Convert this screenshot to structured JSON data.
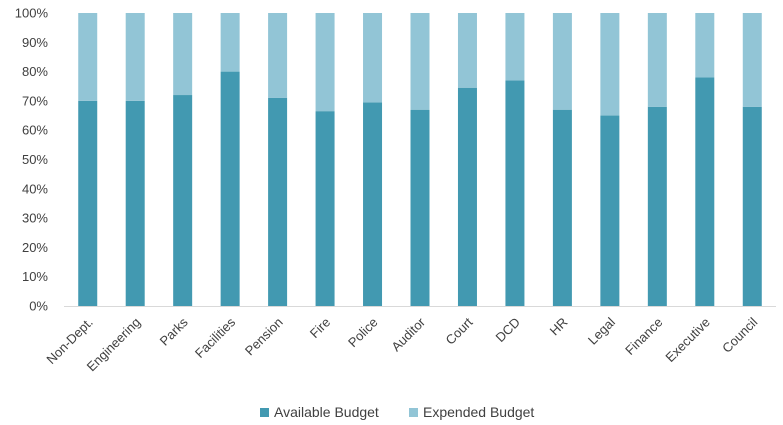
{
  "chart_data": {
    "type": "bar",
    "stacked": true,
    "percent_stacked": true,
    "categories": [
      "Non-Dept.",
      "Engineering",
      "Parks",
      "Facilities",
      "Pension",
      "Fire",
      "Police",
      "Auditor",
      "Court",
      "DCD",
      "HR",
      "Legal",
      "Finance",
      "Executive",
      "Council"
    ],
    "series": [
      {
        "name": "Available Budget",
        "color": "#4299b1",
        "values": [
          70,
          70,
          72,
          80,
          71,
          66.5,
          69.5,
          67,
          74.5,
          77,
          67,
          65,
          68,
          78,
          68
        ]
      },
      {
        "name": "Expended Budget",
        "color": "#92c5d6",
        "values": [
          30,
          30,
          28,
          20,
          29,
          33.5,
          30.5,
          33,
          25.5,
          23,
          33,
          35,
          32,
          22,
          32
        ]
      }
    ],
    "ylim": [
      0,
      100
    ],
    "y_ticks": [
      "0%",
      "10%",
      "20%",
      "30%",
      "40%",
      "50%",
      "60%",
      "70%",
      "80%",
      "90%",
      "100%"
    ],
    "grid": false,
    "legend_position": "bottom",
    "x_tick_rotation": "-45deg"
  }
}
